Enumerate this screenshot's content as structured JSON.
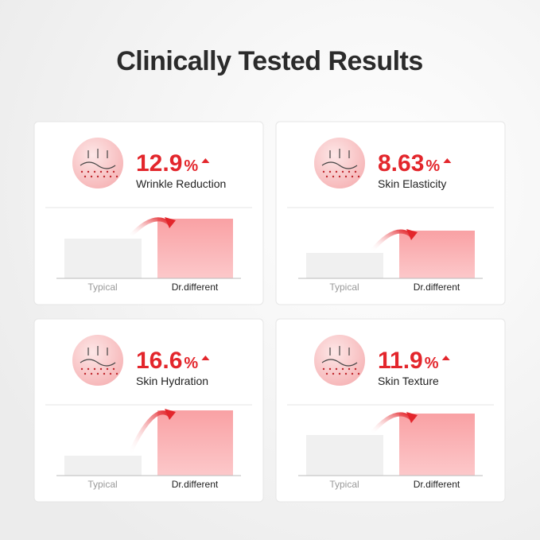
{
  "title": "Clinically Tested Results",
  "panels": [
    {
      "value": "12.9",
      "unit": "%",
      "label": "Wrinkle Reduction",
      "categories": [
        "Typical",
        "Dr.different"
      ]
    },
    {
      "value": "8.63",
      "unit": "%",
      "label": "Skin Elasticity",
      "categories": [
        "Typical",
        "Dr.different"
      ]
    },
    {
      "value": "16.6",
      "unit": "%",
      "label": "Skin Hydration",
      "categories": [
        "Typical",
        "Dr.different"
      ]
    },
    {
      "value": "11.9",
      "unit": "%",
      "label": "Skin Texture",
      "categories": [
        "Typical",
        "Dr.different"
      ]
    }
  ]
}
